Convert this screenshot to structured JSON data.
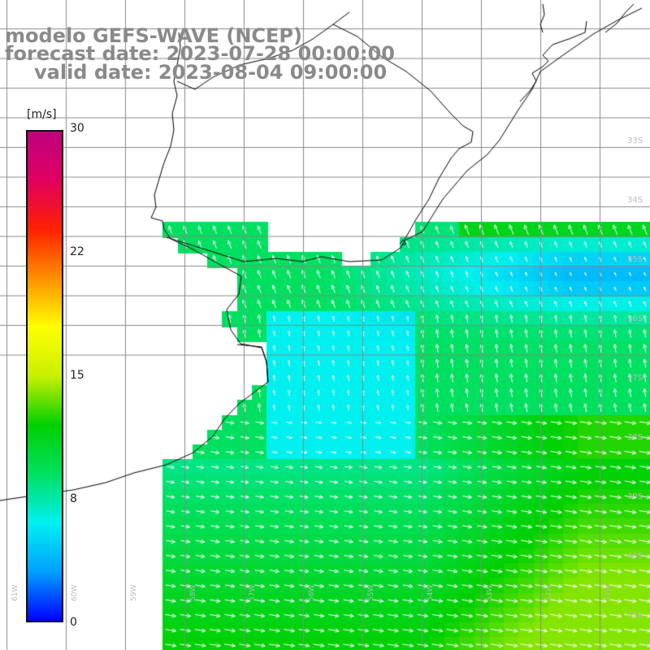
{
  "title": {
    "model": "modelo GEFS-WAVE (NCEP)",
    "forecast": "forecast date: 2023-07-28 00:00:00",
    "valid": "valid date: 2023-08-04 09:00:00"
  },
  "colorbar": {
    "unit": "[m/s]",
    "min": 0,
    "max": 30,
    "ticks": [
      "30",
      "22",
      "15",
      "8",
      "0"
    ],
    "colors": [
      "#0000ff",
      "#00a0ff",
      "#00f0f0",
      "#00e060",
      "#00d000",
      "#c8f000",
      "#ffff00",
      "#ff9000",
      "#ff2000",
      "#e00060",
      "#c00080"
    ]
  },
  "grid": {
    "lon_labels": [
      "61W",
      "60W",
      "59W",
      "58W",
      "57W",
      "56W",
      "55W",
      "54W",
      "53W",
      "52W",
      "51W"
    ],
    "lat_labels": [
      "33S",
      "34S",
      "35S",
      "36S",
      "37S",
      "38S",
      "39S",
      "40S",
      "41S"
    ]
  },
  "colors": {
    "land": "#ffffff",
    "coast": "#000000",
    "grid": "#8a8a8a",
    "title": "#8a8a8a",
    "arrow": "#ffffff"
  }
}
